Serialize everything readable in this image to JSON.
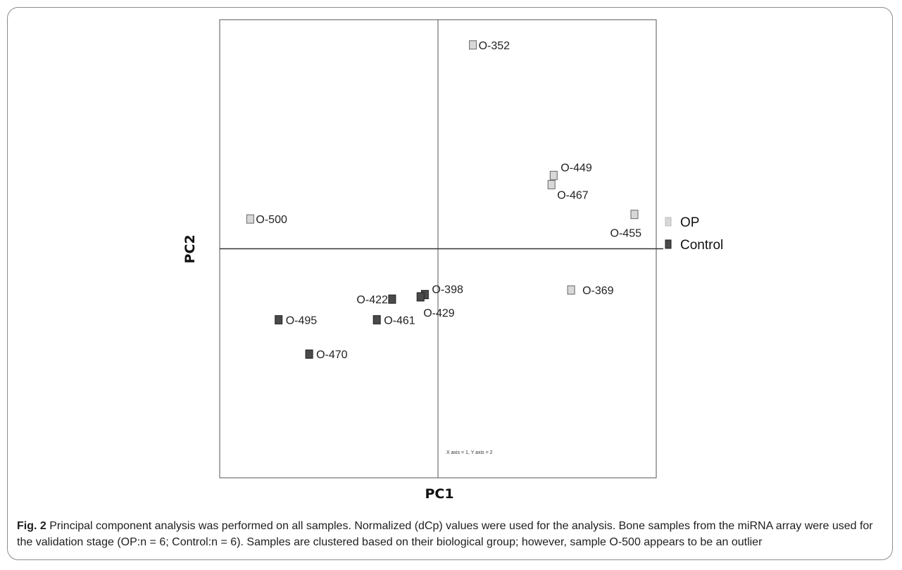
{
  "figure": {
    "label": "Fig. 2",
    "caption": "Principal component analysis was performed on all samples. Normalized (dCp) values were used for the analysis. Bone samples from the miRNA array were used for the validation stage (OP:n = 6; Control:n = 6). Samples are clustered based on their biological group; however, sample O-500 appears to be an outlier"
  },
  "chart_data": {
    "type": "scatter",
    "xlabel": "PC1",
    "ylabel": "PC2",
    "annotation": "X axis = 1, Y axis = 2",
    "xlim": [
      -10,
      10
    ],
    "ylim": [
      -10,
      10
    ],
    "grid": false,
    "legend_position": "right",
    "colors": {
      "OP": "#d8d8d8",
      "Control": "#4a4a4a"
    },
    "series": [
      {
        "name": "OP",
        "points": [
          {
            "label": "O-352",
            "x": 1.6,
            "y": 8.9
          },
          {
            "label": "O-449",
            "x": 5.3,
            "y": 3.2
          },
          {
            "label": "O-467",
            "x": 5.2,
            "y": 2.8
          },
          {
            "label": "O-455",
            "x": 9.0,
            "y": 1.5
          },
          {
            "label": "O-500",
            "x": -8.6,
            "y": 1.3
          },
          {
            "label": "O-369",
            "x": 6.1,
            "y": -1.8
          }
        ]
      },
      {
        "name": "Control",
        "points": [
          {
            "label": "O-398",
            "x": -0.6,
            "y": -2.0
          },
          {
            "label": "O-429",
            "x": -0.8,
            "y": -2.1
          },
          {
            "label": "O-422",
            "x": -2.1,
            "y": -2.2
          },
          {
            "label": "O-461",
            "x": -2.8,
            "y": -3.1
          },
          {
            "label": "O-495",
            "x": -7.3,
            "y": -3.1
          },
          {
            "label": "O-470",
            "x": -5.9,
            "y": -4.6
          }
        ]
      }
    ]
  }
}
